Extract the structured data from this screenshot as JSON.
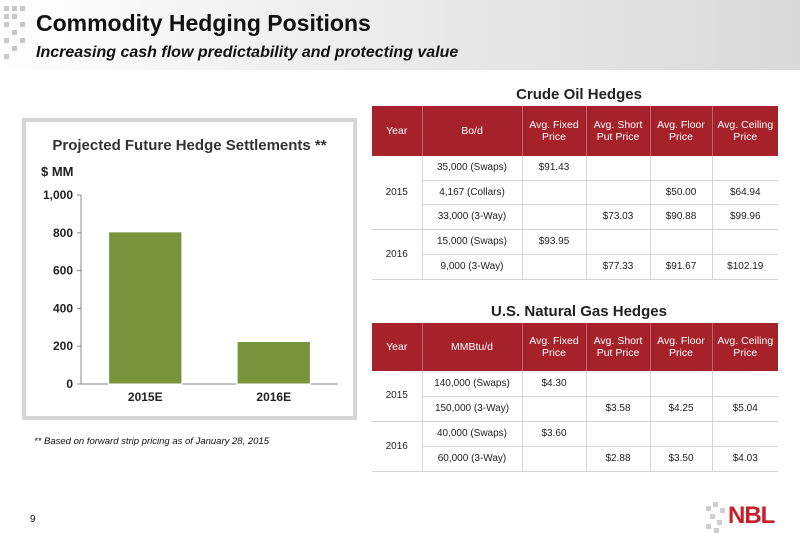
{
  "header": {
    "title": "Commodity Hedging Positions",
    "subtitle": "Increasing cash flow predictability and protecting value"
  },
  "colors": {
    "header_red": "#a6222a",
    "bar_green": "#77933c",
    "logo_red": "#c8202a"
  },
  "chart_data": {
    "type": "bar",
    "title": "Projected Future Hedge Settlements **",
    "ylabel": "$ MM",
    "categories": [
      "2015E",
      "2016E"
    ],
    "values": [
      805,
      225
    ],
    "ylim": [
      0,
      1000
    ],
    "yticks": [
      "0",
      "200",
      "400",
      "600",
      "800",
      "1,000"
    ],
    "ytick_values": [
      0,
      200,
      400,
      600,
      800,
      1000
    ],
    "grid": false,
    "legend": "none"
  },
  "footnote": "** Based on forward strip pricing as of January 28, 2015",
  "page_number": "9",
  "crude": {
    "title": "Crude Oil Hedges",
    "headers": [
      "Year",
      "Bo/d",
      "Avg. Fixed Price",
      "Avg. Short Put Price",
      "Avg. Floor Price",
      "Avg. Ceiling Price"
    ],
    "years": [
      "2015",
      "2016"
    ],
    "rows": [
      [
        "35,000 (Swaps)",
        "$91.43",
        "",
        "",
        ""
      ],
      [
        "4,167 (Collars)",
        "",
        "",
        "$50.00",
        "$64.94"
      ],
      [
        "33,000 (3-Way)",
        "",
        "$73.03",
        "$90.88",
        "$99.96"
      ],
      [
        "15,000 (Swaps)",
        "$93.95",
        "",
        "",
        ""
      ],
      [
        "9,000 (3-Way)",
        "",
        "$77.33",
        "$91.67",
        "$102.19"
      ]
    ]
  },
  "gas": {
    "title": "U.S. Natural Gas Hedges",
    "headers": [
      "Year",
      "MMBtu/d",
      "Avg. Fixed Price",
      "Avg. Short Put Price",
      "Avg. Floor Price",
      "Avg. Ceiling Price"
    ],
    "years": [
      "2015",
      "2016"
    ],
    "rows": [
      [
        "140,000 (Swaps)",
        "$4.30",
        "",
        "",
        ""
      ],
      [
        "150,000 (3-Way)",
        "",
        "$3.58",
        "$4.25",
        "$5.04"
      ],
      [
        "40,000 (Swaps)",
        "$3.60",
        "",
        "",
        ""
      ],
      [
        "60,000 (3-Way)",
        "",
        "$2.88",
        "$3.50",
        "$4.03"
      ]
    ]
  },
  "logo": {
    "text": "NBL"
  }
}
